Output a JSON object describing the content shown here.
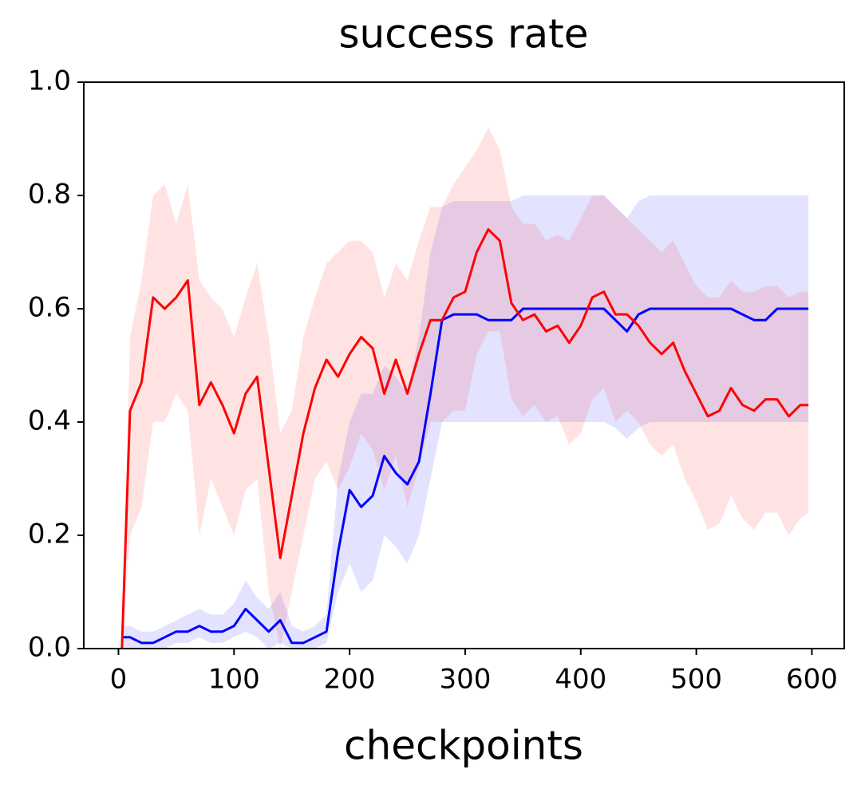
{
  "chart_data": {
    "type": "line",
    "title": "success rate",
    "x_label": "checkpoints",
    "xlim": [
      -30,
      628
    ],
    "xticks": [
      0,
      100,
      200,
      300,
      400,
      500,
      600
    ],
    "ylim": [
      0,
      1
    ],
    "yticks": [
      {
        "value": 0,
        "label": "0.0"
      },
      0.2,
      0.4,
      0.6,
      0.8,
      {
        "value": 1,
        "label": "1.0"
      }
    ],
    "x": [
      3,
      10,
      20,
      30,
      40,
      50,
      60,
      70,
      80,
      90,
      100,
      110,
      120,
      130,
      140,
      150,
      160,
      170,
      180,
      190,
      200,
      210,
      220,
      230,
      240,
      250,
      260,
      270,
      280,
      290,
      300,
      310,
      320,
      330,
      340,
      350,
      360,
      370,
      380,
      390,
      400,
      410,
      420,
      430,
      440,
      450,
      460,
      470,
      480,
      490,
      500,
      510,
      520,
      530,
      540,
      550,
      560,
      570,
      580,
      590,
      597
    ],
    "series": [
      {
        "color": "#0000ff",
        "values": [
          0.02,
          0.02,
          0.01,
          0.01,
          0.02,
          0.03,
          0.03,
          0.04,
          0.03,
          0.03,
          0.04,
          0.07,
          0.05,
          0.03,
          0.05,
          0.01,
          0.01,
          0.02,
          0.03,
          0.17,
          0.28,
          0.25,
          0.27,
          0.34,
          0.31,
          0.29,
          0.33,
          0.45,
          0.58,
          0.59,
          0.59,
          0.59,
          0.58,
          0.58,
          0.58,
          0.6,
          0.6,
          0.6,
          0.6,
          0.6,
          0.6,
          0.6,
          0.6,
          0.58,
          0.56,
          0.59,
          0.6,
          0.6,
          0.6,
          0.6,
          0.6,
          0.6,
          0.6,
          0.6,
          0.59,
          0.58,
          0.58,
          0.6,
          0.6,
          0.6,
          0.6
        ],
        "lower": [
          0,
          0,
          0,
          0,
          0,
          0.01,
          0.01,
          0.02,
          0.01,
          0.01,
          0.02,
          0.03,
          0.02,
          0,
          0.01,
          0,
          0,
          0,
          0.01,
          0.1,
          0.15,
          0.1,
          0.12,
          0.2,
          0.18,
          0.15,
          0.2,
          0.3,
          0.4,
          0.4,
          0.4,
          0.4,
          0.4,
          0.4,
          0.4,
          0.4,
          0.4,
          0.4,
          0.4,
          0.4,
          0.4,
          0.4,
          0.4,
          0.39,
          0.37,
          0.39,
          0.4,
          0.4,
          0.4,
          0.4,
          0.4,
          0.4,
          0.4,
          0.4,
          0.4,
          0.4,
          0.4,
          0.4,
          0.4,
          0.4,
          0.4
        ],
        "upper": [
          0.04,
          0.04,
          0.03,
          0.03,
          0.04,
          0.05,
          0.06,
          0.07,
          0.06,
          0.06,
          0.08,
          0.12,
          0.09,
          0.07,
          0.1,
          0.04,
          0.03,
          0.04,
          0.06,
          0.3,
          0.4,
          0.45,
          0.45,
          0.5,
          0.48,
          0.45,
          0.55,
          0.7,
          0.78,
          0.79,
          0.79,
          0.79,
          0.79,
          0.79,
          0.79,
          0.8,
          0.8,
          0.8,
          0.8,
          0.8,
          0.8,
          0.8,
          0.8,
          0.78,
          0.76,
          0.79,
          0.8,
          0.8,
          0.8,
          0.8,
          0.8,
          0.8,
          0.8,
          0.8,
          0.8,
          0.8,
          0.8,
          0.8,
          0.8,
          0.8,
          0.8
        ]
      },
      {
        "color": "#ff0000",
        "values": [
          0,
          0.42,
          0.47,
          0.62,
          0.6,
          0.62,
          0.65,
          0.43,
          0.47,
          0.43,
          0.38,
          0.45,
          0.48,
          0.32,
          0.16,
          0.27,
          0.38,
          0.46,
          0.51,
          0.48,
          0.52,
          0.55,
          0.53,
          0.45,
          0.51,
          0.45,
          0.52,
          0.58,
          0.58,
          0.62,
          0.63,
          0.7,
          0.74,
          0.72,
          0.61,
          0.58,
          0.59,
          0.56,
          0.57,
          0.54,
          0.57,
          0.62,
          0.63,
          0.59,
          0.59,
          0.57,
          0.54,
          0.52,
          0.54,
          0.49,
          0.45,
          0.41,
          0.42,
          0.46,
          0.43,
          0.42,
          0.44,
          0.44,
          0.41,
          0.43,
          0.43
        ],
        "lower": [
          0,
          0.2,
          0.25,
          0.4,
          0.4,
          0.45,
          0.42,
          0.2,
          0.3,
          0.25,
          0.2,
          0.28,
          0.3,
          0.1,
          0,
          0.1,
          0.2,
          0.3,
          0.33,
          0.28,
          0.32,
          0.38,
          0.35,
          0.28,
          0.34,
          0.25,
          0.32,
          0.4,
          0.4,
          0.42,
          0.42,
          0.52,
          0.56,
          0.56,
          0.44,
          0.41,
          0.43,
          0.4,
          0.41,
          0.36,
          0.38,
          0.44,
          0.46,
          0.4,
          0.42,
          0.4,
          0.36,
          0.34,
          0.36,
          0.3,
          0.26,
          0.21,
          0.22,
          0.27,
          0.23,
          0.21,
          0.24,
          0.24,
          0.2,
          0.23,
          0.24
        ],
        "upper": [
          0,
          0.55,
          0.65,
          0.8,
          0.82,
          0.75,
          0.82,
          0.65,
          0.62,
          0.6,
          0.55,
          0.62,
          0.68,
          0.55,
          0.38,
          0.42,
          0.55,
          0.62,
          0.68,
          0.7,
          0.72,
          0.72,
          0.7,
          0.62,
          0.68,
          0.65,
          0.72,
          0.78,
          0.78,
          0.82,
          0.85,
          0.88,
          0.92,
          0.88,
          0.78,
          0.75,
          0.75,
          0.72,
          0.73,
          0.72,
          0.76,
          0.8,
          0.8,
          0.78,
          0.76,
          0.74,
          0.72,
          0.7,
          0.72,
          0.68,
          0.64,
          0.62,
          0.62,
          0.65,
          0.63,
          0.63,
          0.64,
          0.64,
          0.62,
          0.63,
          0.63
        ]
      }
    ]
  }
}
